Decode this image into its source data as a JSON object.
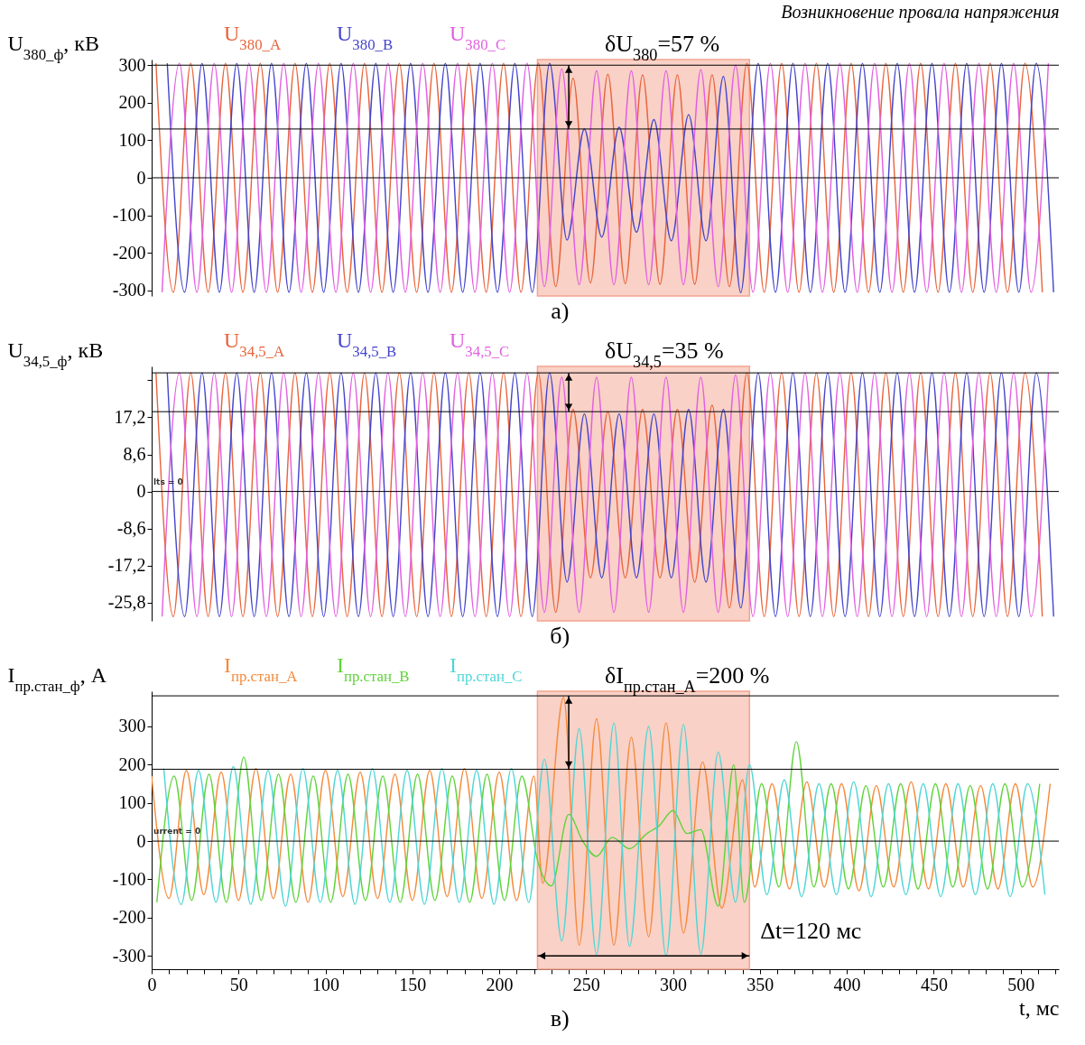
{
  "chart_data": [
    {
      "type": "line",
      "title": "Возникновение провала напряжения",
      "ylabel": "U$_{380_ф}$, кВ",
      "xlim": [
        0,
        522
      ],
      "ylim": [
        -315,
        315
      ],
      "yticks": [
        -300,
        -200,
        -100,
        0,
        100,
        200,
        300
      ],
      "tick_labels": "y",
      "series": [
        {
          "name": "U$_{380_A}$",
          "color": "#e8643c",
          "x": [
            2.5,
            12.5,
            22.5,
            32.5,
            42.5,
            52.5,
            62.5,
            72.5,
            82.5,
            92.5,
            102.5,
            112.5,
            122.5,
            132.5,
            142.5,
            152.5,
            162.5,
            172.5,
            182.5,
            192.5,
            202.5,
            212.5,
            222.5,
            232.5,
            242.5,
            252.5,
            262.5,
            272.5,
            282.5,
            292.5,
            302.5,
            312.5,
            322.5,
            332.5,
            342.5,
            352.5,
            362.5,
            372.5,
            382.5,
            392.5,
            402.5,
            412.5,
            422.5,
            432.5,
            442.5,
            452.5,
            462.5,
            472.5,
            482.5,
            492.5,
            502.5,
            512.5
          ],
          "values": [
            305,
            -305,
            305,
            -305,
            305,
            -305,
            305,
            -305,
            305,
            -305,
            305,
            -305,
            305,
            -305,
            305,
            -305,
            305,
            -305,
            305,
            -305,
            305,
            -305,
            305,
            -290,
            265,
            -280,
            276,
            -282,
            274,
            -284,
            274,
            -284,
            274,
            -290,
            305,
            -305,
            305,
            -305,
            305,
            -305,
            305,
            -305,
            305,
            -305,
            305,
            -305,
            305,
            -305,
            305,
            -305,
            305,
            -305
          ]
        },
        {
          "name": "U$_{380_B}$",
          "color": "#4444cc",
          "x": [
            9,
            19,
            29,
            39,
            49,
            59,
            69,
            79,
            89,
            99,
            109,
            119,
            129,
            139,
            149,
            159,
            169,
            179,
            189,
            199,
            209,
            219,
            229,
            239,
            249,
            259,
            269,
            279,
            289,
            299,
            309,
            319,
            329,
            339,
            349,
            359,
            369,
            379,
            389,
            399,
            409,
            419,
            429,
            439,
            449,
            459,
            469,
            479,
            489,
            499,
            509,
            519
          ],
          "values": [
            305,
            -305,
            305,
            -305,
            305,
            -305,
            305,
            -305,
            305,
            -305,
            305,
            -305,
            305,
            -305,
            305,
            -305,
            305,
            -305,
            305,
            -305,
            305,
            -305,
            305,
            -166,
            130,
            -158,
            135,
            -145,
            155,
            -168,
            168,
            -168,
            270,
            -306,
            305,
            -305,
            305,
            -305,
            305,
            -305,
            305,
            -305,
            305,
            -305,
            305,
            -305,
            305,
            -305,
            305,
            -305,
            305,
            -305
          ]
        },
        {
          "name": "U$_{380_C}$",
          "color": "#e25fe0",
          "x": [
            6,
            16,
            26,
            36,
            46,
            56,
            66,
            76,
            86,
            96,
            106,
            116,
            126,
            136,
            146,
            156,
            166,
            176,
            186,
            196,
            206,
            216,
            226,
            236,
            246,
            256,
            266,
            276,
            286,
            296,
            306,
            316,
            326,
            336,
            346,
            356,
            366,
            376,
            386,
            396,
            406,
            416,
            426,
            436,
            446,
            456,
            466,
            476,
            486,
            496,
            506,
            516
          ],
          "values": [
            -305,
            305,
            -305,
            305,
            -305,
            305,
            -305,
            305,
            -305,
            305,
            -305,
            305,
            -305,
            305,
            -305,
            305,
            -305,
            305,
            -305,
            305,
            -305,
            305,
            -290,
            290,
            -285,
            285,
            -285,
            285,
            -285,
            285,
            -285,
            288,
            -290,
            300,
            -305,
            305,
            -305,
            305,
            -305,
            305,
            -305,
            305,
            -305,
            305,
            -305,
            305,
            -305,
            305,
            -305,
            305,
            -305,
            305
          ]
        }
      ],
      "ref_lines": [
        {
          "axis": "y",
          "value": 300,
          "color": "#000000"
        },
        {
          "axis": "y",
          "value": 130,
          "color": "#000000"
        },
        {
          "axis": "y",
          "value": 0,
          "color": "#000000"
        }
      ],
      "bands": [
        {
          "axis": "x",
          "from": 222,
          "to": 344,
          "color": "#f4a490"
        }
      ],
      "annotations": [
        "а)",
        {
          "text": "δU$_{380}$=57 %",
          "x": 240,
          "y": 300
        }
      ]
    },
    {
      "type": "line",
      "ylabel": "U$_{34,5_ф}$, кВ",
      "xlim": [
        0,
        522
      ],
      "ylim": [
        -30,
        29
      ],
      "yticks": [
        {
          "value": 25.8,
          "label": null
        },
        {
          "value": 17.2,
          "label": "17,2"
        },
        {
          "value": 8.6,
          "label": "8,6"
        },
        0,
        {
          "value": -8.6,
          "label": "-8,6"
        },
        {
          "value": -17.2,
          "label": "-17,2"
        },
        {
          "value": -25.8,
          "label": "-25,8"
        }
      ],
      "tick_labels": "y",
      "series": [
        {
          "name": "U$_{34,5_A}$",
          "color": "#e8643c",
          "x": [
            2.5,
            12.5,
            22.5,
            32.5,
            42.5,
            52.5,
            62.5,
            72.5,
            82.5,
            92.5,
            102.5,
            112.5,
            122.5,
            132.5,
            142.5,
            152.5,
            162.5,
            172.5,
            182.5,
            192.5,
            202.5,
            212.5,
            222.5,
            232.5,
            242.5,
            252.5,
            262.5,
            272.5,
            282.5,
            292.5,
            302.5,
            312.5,
            322.5,
            332.5,
            342.5,
            352.5,
            362.5,
            372.5,
            382.5,
            392.5,
            402.5,
            412.5,
            422.5,
            432.5,
            442.5,
            452.5,
            462.5,
            472.5,
            482.5,
            492.5,
            502.5,
            512.5
          ],
          "values": [
            27.5,
            -29,
            27.5,
            -29,
            27.5,
            -29,
            27.5,
            -29,
            27.5,
            -29,
            27.5,
            -29,
            27.5,
            -29,
            27.5,
            -29,
            27.5,
            -29,
            27.5,
            -29,
            27.5,
            -29,
            27.5,
            -28,
            19,
            -20,
            18.5,
            -20,
            19,
            -20,
            19,
            -21,
            20,
            -27,
            27.5,
            -29,
            27.5,
            -29,
            27.5,
            -29,
            27.5,
            -29,
            27.5,
            -29,
            27.5,
            -29,
            27.5,
            -29,
            27.5,
            -29,
            27.5,
            -29
          ]
        },
        {
          "name": "U$_{34,5_B}$",
          "color": "#4444cc",
          "x": [
            9,
            19,
            29,
            39,
            49,
            59,
            69,
            79,
            89,
            99,
            109,
            119,
            129,
            139,
            149,
            159,
            169,
            179,
            189,
            199,
            209,
            219,
            229,
            239,
            249,
            259,
            269,
            279,
            289,
            299,
            309,
            319,
            329,
            339,
            349,
            359,
            369,
            379,
            389,
            399,
            409,
            419,
            429,
            439,
            449,
            459,
            469,
            479,
            489,
            499,
            509,
            519
          ],
          "values": [
            27.5,
            -29,
            27.5,
            -29,
            27.5,
            -29,
            27.5,
            -29,
            27.5,
            -29,
            27.5,
            -29,
            27.5,
            -29,
            27.5,
            -29,
            27.5,
            -29,
            27.5,
            -29,
            27.5,
            -29,
            27.5,
            -21,
            18,
            -20,
            18,
            -20,
            18,
            -20,
            19,
            -21,
            19,
            -27,
            27.5,
            -29,
            27.5,
            -29,
            27.5,
            -29,
            27.5,
            -29,
            27.5,
            -29,
            27.5,
            -29,
            27.5,
            -29,
            27.5,
            -29,
            27.5,
            -29
          ]
        },
        {
          "name": "U$_{34,5_C}$",
          "color": "#e25fe0",
          "x": [
            6,
            16,
            26,
            36,
            46,
            56,
            66,
            76,
            86,
            96,
            106,
            116,
            126,
            136,
            146,
            156,
            166,
            176,
            186,
            196,
            206,
            216,
            226,
            236,
            246,
            256,
            266,
            276,
            286,
            296,
            306,
            316,
            326,
            336,
            346,
            356,
            366,
            376,
            386,
            396,
            406,
            416,
            426,
            436,
            446,
            456,
            466,
            476,
            486,
            496,
            506,
            516
          ],
          "values": [
            -29,
            27.5,
            -29,
            27.5,
            -29,
            27.5,
            -29,
            27.5,
            -29,
            27.5,
            -29,
            27.5,
            -29,
            27.5,
            -29,
            27.5,
            -29,
            27.5,
            -29,
            27.5,
            -29,
            27.5,
            -28,
            26.5,
            -28,
            26.5,
            -28,
            26.5,
            -28,
            26.5,
            -28,
            26.5,
            -28,
            27,
            -29,
            27.5,
            -29,
            27.5,
            -29,
            27.5,
            -29,
            27.5,
            -29,
            27.5,
            -29,
            27.5,
            -29,
            27.5,
            -29,
            27.5,
            -29,
            27.5
          ]
        }
      ],
      "ref_lines": [
        {
          "axis": "y",
          "value": 27.5,
          "color": "#000000"
        },
        {
          "axis": "y",
          "value": 18.5,
          "color": "#000000"
        },
        {
          "axis": "y",
          "value": 0,
          "color": "#000000"
        }
      ],
      "bands": [
        {
          "axis": "x",
          "from": 222,
          "to": 344,
          "color": "#f4a490"
        }
      ],
      "annotations": [
        "б)",
        {
          "text": "δU$_{34,5}$=35 %",
          "x": 240,
          "y": 27.5
        },
        {
          "text": "lts = 0",
          "x": 0,
          "y": 0
        }
      ]
    },
    {
      "type": "line",
      "ylabel": "I$_{пр.стан_ф}$, А",
      "xlabel": "t, мс",
      "xlim": [
        0,
        522
      ],
      "ylim": [
        -335,
        392
      ],
      "yticks": [
        -300,
        -200,
        -100,
        0,
        100,
        200,
        300
      ],
      "xticks": [
        0,
        {
          "value": 10,
          "label": null
        },
        {
          "value": 20,
          "label": null
        },
        {
          "value": 30,
          "label": null
        },
        {
          "value": 40,
          "label": null
        },
        50,
        {
          "value": 60,
          "label": null
        },
        {
          "value": 70,
          "label": null
        },
        {
          "value": 80,
          "label": null
        },
        {
          "value": 90,
          "label": null
        },
        100,
        {
          "value": 110,
          "label": null
        },
        {
          "value": 120,
          "label": null
        },
        {
          "value": 130,
          "label": null
        },
        {
          "value": 140,
          "label": null
        },
        150,
        {
          "value": 160,
          "label": null
        },
        {
          "value": 170,
          "label": null
        },
        {
          "value": 180,
          "label": null
        },
        {
          "value": 190,
          "label": null
        },
        200,
        {
          "value": 210,
          "label": null
        },
        {
          "value": 220,
          "label": null
        },
        {
          "value": 230,
          "label": null
        },
        {
          "value": 240,
          "label": null
        },
        250,
        {
          "value": 260,
          "label": null
        },
        {
          "value": 270,
          "label": null
        },
        {
          "value": 280,
          "label": null
        },
        {
          "value": 290,
          "label": null
        },
        300,
        {
          "value": 310,
          "label": null
        },
        {
          "value": 320,
          "label": null
        },
        {
          "value": 330,
          "label": null
        },
        {
          "value": 340,
          "label": null
        },
        350,
        {
          "value": 360,
          "label": null
        },
        {
          "value": 370,
          "label": null
        },
        {
          "value": 380,
          "label": null
        },
        {
          "value": 390,
          "label": null
        },
        400,
        {
          "value": 410,
          "label": null
        },
        {
          "value": 420,
          "label": null
        },
        {
          "value": 430,
          "label": null
        },
        {
          "value": 440,
          "label": null
        },
        450,
        {
          "value": 460,
          "label": null
        },
        {
          "value": 470,
          "label": null
        },
        {
          "value": 480,
          "label": null
        },
        {
          "value": 490,
          "label": null
        },
        500,
        {
          "value": 510,
          "label": null
        },
        {
          "value": 520,
          "label": null
        }
      ],
      "series": [
        {
          "name": "I$_{пр.стан_A}$",
          "color": "#f58a3a",
          "x": [
            0,
            10,
            20,
            30,
            40,
            50,
            60,
            70,
            80,
            90,
            100,
            110,
            120,
            130,
            140,
            150,
            160,
            170,
            180,
            190,
            200,
            210,
            220,
            225,
            237,
            246,
            256,
            266,
            276,
            286,
            296,
            306,
            317,
            328,
            340,
            347,
            357,
            367,
            377,
            387,
            397,
            407,
            417,
            427,
            437,
            447,
            457,
            467,
            477,
            487,
            497,
            507,
            517
          ],
          "values": [
            170,
            -150,
            185,
            -140,
            180,
            -155,
            190,
            -150,
            175,
            -160,
            185,
            -145,
            180,
            -150,
            175,
            -155,
            185,
            -145,
            190,
            -150,
            180,
            -155,
            170,
            -110,
            376,
            -272,
            320,
            -272,
            272,
            -250,
            309,
            -240,
            207,
            -175,
            160,
            -120,
            150,
            -125,
            155,
            -120,
            150,
            -130,
            145,
            -120,
            155,
            -125,
            150,
            -120,
            145,
            -125,
            150,
            -120,
            150
          ]
        },
        {
          "name": "I$_{пр.стан_B}$",
          "color": "#5fd33a",
          "x": [
            3,
            13,
            23,
            33,
            43,
            53,
            63,
            73,
            83,
            93,
            103,
            113,
            123,
            133,
            143,
            153,
            163,
            173,
            183,
            193,
            203,
            213,
            222,
            230,
            240,
            248,
            256,
            265,
            275,
            285,
            292,
            300,
            308,
            316,
            326,
            335,
            341,
            351,
            361,
            371,
            381,
            391,
            401,
            411,
            421,
            431,
            441,
            451,
            461,
            471,
            481,
            491,
            501,
            511
          ],
          "values": [
            -160,
            170,
            -155,
            175,
            -160,
            220,
            -155,
            175,
            -160,
            170,
            -160,
            175,
            -155,
            170,
            -160,
            175,
            -155,
            170,
            -160,
            175,
            -155,
            170,
            -50,
            -117,
            70,
            0,
            -40,
            10,
            -20,
            20,
            40,
            80,
            20,
            30,
            -170,
            200,
            -160,
            150,
            -120,
            260,
            -120,
            150,
            -125,
            145,
            -120,
            150,
            -125,
            150,
            -120,
            145,
            -125,
            150,
            -120,
            150
          ]
        },
        {
          "name": "I$_{пр.стан_C}$",
          "color": "#4fd5d5",
          "x": [
            7,
            17,
            27,
            37,
            47,
            57,
            67,
            77,
            87,
            97,
            107,
            117,
            127,
            137,
            147,
            157,
            167,
            177,
            187,
            197,
            207,
            217,
            226,
            236,
            246,
            256,
            266,
            275,
            286,
            296,
            306,
            316,
            326,
            336,
            344,
            354,
            364,
            374,
            384,
            394,
            404,
            414,
            424,
            434,
            444,
            454,
            464,
            474,
            484,
            494,
            504,
            514
          ],
          "values": [
            190,
            -166,
            185,
            -160,
            195,
            -165,
            185,
            -170,
            190,
            -160,
            185,
            -165,
            190,
            -160,
            185,
            -165,
            190,
            -160,
            185,
            -165,
            190,
            -160,
            214,
            -261,
            294,
            -296,
            309,
            -275,
            300,
            -300,
            305,
            -295,
            233,
            -160,
            200,
            -140,
            160,
            -145,
            150,
            -140,
            155,
            -145,
            150,
            -140,
            150,
            -145,
            150,
            -140,
            150,
            -145,
            150,
            -140
          ]
        }
      ],
      "ref_lines": [
        {
          "axis": "y",
          "value": 380,
          "color": "#000000"
        },
        {
          "axis": "y",
          "value": 188,
          "color": "#000000"
        },
        {
          "axis": "y",
          "value": 0,
          "color": "#000000"
        }
      ],
      "bands": [
        {
          "axis": "x",
          "from": 222,
          "to": 344,
          "color": "#f4a490"
        }
      ],
      "annotations": [
        "в)",
        {
          "text": "δI$_{пр.стан_A}$=200 %",
          "x": 240,
          "y": 380
        },
        {
          "text": "Δt=120 мс",
          "x": 344,
          "y": -300
        },
        {
          "text": "urrent = 0",
          "x": 0,
          "y": 0
        }
      ]
    }
  ]
}
